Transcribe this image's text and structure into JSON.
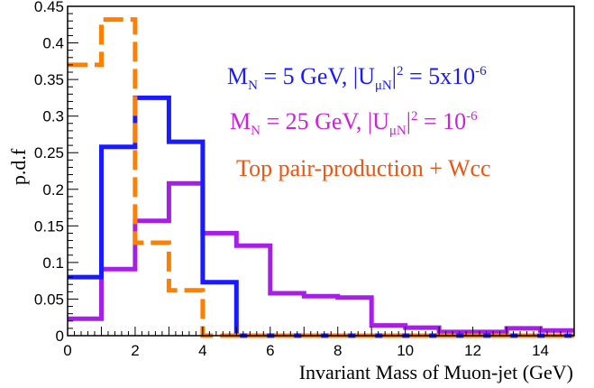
{
  "chart_data": {
    "type": "histogram-step",
    "xlabel": "Invariant Mass of Muon-jet (GeV)",
    "ylabel": "p.d.f",
    "xlim": [
      0,
      15
    ],
    "ylim": [
      0,
      0.45
    ],
    "x_ticks": [
      "0",
      "2",
      "4",
      "6",
      "8",
      "10",
      "12",
      "14"
    ],
    "y_ticks": [
      "0",
      "0.05",
      "0.1",
      "0.15",
      "0.2",
      "0.25",
      "0.3",
      "0.35",
      "0.4",
      "0.45"
    ],
    "bin_edges": [
      0,
      1,
      2,
      3,
      4,
      5,
      6,
      7,
      8,
      9,
      10,
      11,
      12,
      13,
      14,
      15
    ],
    "series": [
      {
        "name": "M_N = 5 GeV, |U_μN|² = 5x10⁻⁶",
        "color": "#1a1aff",
        "style": "solid",
        "values": [
          0.08,
          0.258,
          0.325,
          0.265,
          0.073,
          0.0,
          0.0,
          0.0,
          0.0,
          0.0,
          0.0,
          0.0,
          0.0,
          0.0,
          0.0
        ]
      },
      {
        "name": "M_N = 25 GeV, |U_μN|² = 10⁻⁶",
        "color": "#a61fe6",
        "style": "solid",
        "values": [
          0.023,
          0.091,
          0.157,
          0.208,
          0.14,
          0.123,
          0.058,
          0.054,
          0.052,
          0.014,
          0.011,
          0.005,
          0.005,
          0.01,
          0.007
        ]
      },
      {
        "name": "Top pair-production + Wcc",
        "color": "#ff8000",
        "style": "dashed",
        "values": [
          0.37,
          0.432,
          0.127,
          0.062,
          0.0,
          0.0,
          0.0,
          0.0,
          0.0,
          0.0,
          0.0,
          0.0,
          0.0,
          0.0,
          0.0
        ]
      }
    ],
    "legend": [
      {
        "parts": [
          "M",
          "N",
          " =  5 GeV,   |U",
          "μN",
          "|",
          "2",
          "  =  5x10",
          "-6"
        ],
        "color": "#1a1aff"
      },
      {
        "parts": [
          "M",
          "N",
          " =  25 GeV, |U",
          "μN",
          "|",
          "2",
          "  = 10",
          "-6"
        ],
        "color": "#cc22dd"
      },
      {
        "text": "Top pair-production + Wcc",
        "color": "#ee5511"
      }
    ]
  }
}
